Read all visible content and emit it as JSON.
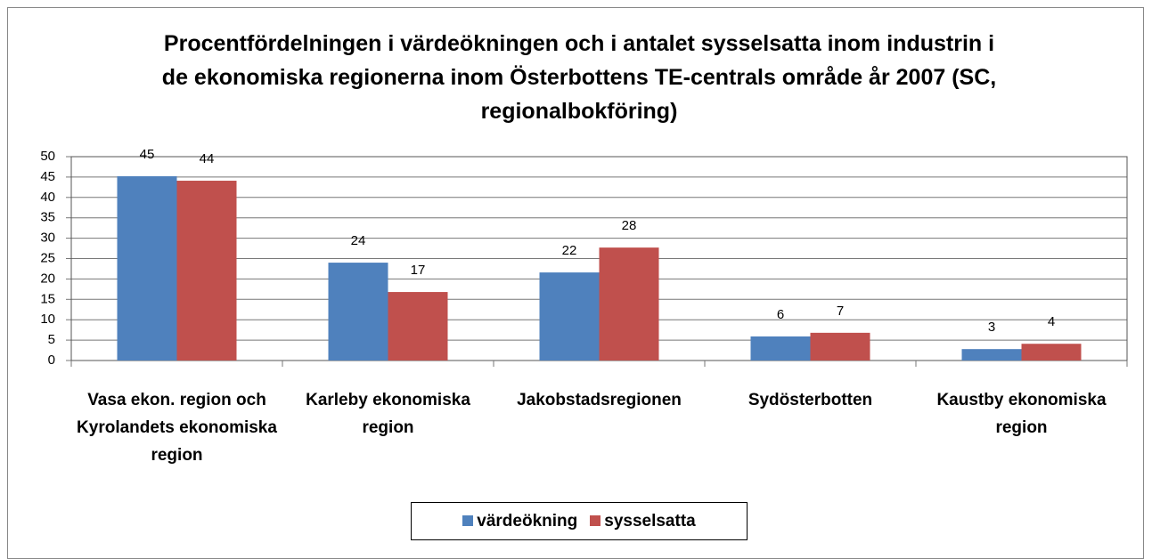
{
  "chart_data": {
    "type": "bar",
    "title": "Procentfördelningen i värdeökningen och i antalet sysselsatta inom industrin i de ekonomiska regionerna inom Österbottens TE-centrals område år 2007 (SC, regionalbokföring)",
    "categories": [
      "Vasa ekon. region och Kyrolandets ekonomiska region",
      "Karleby ekonomiska region",
      "Jakobstadsregionen",
      "Sydösterbotten",
      "Kaustby ekonomiska region"
    ],
    "series": [
      {
        "name": "värdeökning",
        "color": "#4f81bd",
        "values": [
          45.2,
          24.0,
          21.6,
          5.9,
          2.8
        ],
        "value_labels": [
          "45",
          "24",
          "22",
          "6",
          "3"
        ]
      },
      {
        "name": "sysselsatta",
        "color": "#c0504d",
        "values": [
          44.1,
          16.8,
          27.7,
          6.8,
          4.1
        ],
        "value_labels": [
          "44",
          "17",
          "28",
          "7",
          "4"
        ]
      }
    ],
    "ylim": [
      0,
      50
    ],
    "yticks": [
      0,
      5,
      10,
      15,
      20,
      25,
      30,
      35,
      40,
      45,
      50
    ],
    "grid": true
  }
}
